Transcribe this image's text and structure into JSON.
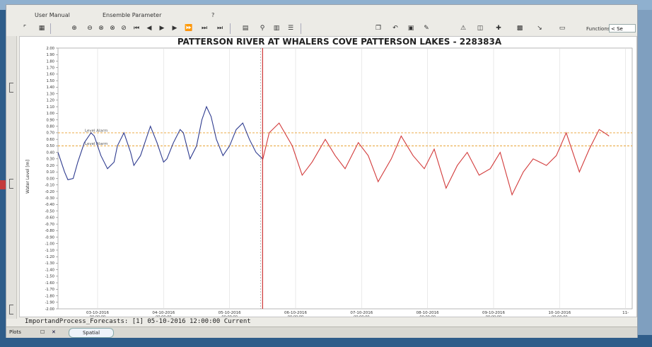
{
  "menu": [
    {
      "label": "User Manual"
    },
    {
      "label": "Ensemble Parameter"
    },
    {
      "label": "?"
    }
  ],
  "toolbar": {
    "functions_label": "Functions",
    "functions_value": "< Se"
  },
  "status_text": "ImportandProcess_Forecasts: [1] 05-10-2016 12:00:00 Current",
  "tabs": [
    {
      "label": "Plots"
    },
    {
      "label": "Spatial"
    }
  ],
  "colors": {
    "observed": "#2e3b8f",
    "forecast": "#d23a3a",
    "alarm": "#e8a030",
    "forecast_time": "#cc3333"
  },
  "chart_data": {
    "type": "line",
    "title": "PATTERSON RIVER AT WHALERS COVE PATTERSON LAKES - 228383A",
    "ylabel": "Water Level [m]",
    "ylim": [
      -2.0,
      2.0
    ],
    "ytick_step": 0.1,
    "xlim": [
      2.4,
      11.1
    ],
    "xticks": [
      {
        "day": 3,
        "label": "03-10-2016",
        "sub": "00:00:00"
      },
      {
        "day": 4,
        "label": "04-10-2016",
        "sub": "00:00:00"
      },
      {
        "day": 5,
        "label": "05-10-2016",
        "sub": "00:00:00"
      },
      {
        "day": 6,
        "label": "06-10-2016",
        "sub": "00:00:00"
      },
      {
        "day": 7,
        "label": "07-10-2016",
        "sub": "00:00:00"
      },
      {
        "day": 8,
        "label": "08-10-2016",
        "sub": "00:00:00"
      },
      {
        "day": 9,
        "label": "09-10-2016",
        "sub": "00:00:00"
      },
      {
        "day": 10,
        "label": "10-10-2016",
        "sub": "00:00:00"
      },
      {
        "day": 11,
        "label": "11-",
        "sub": ""
      }
    ],
    "alarms": [
      {
        "label": "Level Alarm",
        "value": 0.7
      },
      {
        "label": "Level Alarm",
        "value": 0.5
      }
    ],
    "forecast_time_day": 5.5,
    "series": [
      {
        "x": [
          2.4,
          2.5,
          2.55,
          2.63,
          2.7,
          2.8,
          2.9,
          2.95,
          3.05,
          3.15,
          3.25,
          3.3,
          3.4,
          3.5,
          3.55,
          3.65,
          3.75,
          3.8,
          3.9,
          4.0,
          4.05,
          4.15,
          4.25,
          4.3,
          4.4,
          4.5,
          4.58,
          4.65,
          4.72,
          4.8,
          4.9,
          5.0,
          5.1,
          5.2,
          5.3,
          5.4,
          5.5
        ],
        "y": [
          0.4,
          0.1,
          -0.02,
          0.0,
          0.25,
          0.55,
          0.7,
          0.65,
          0.35,
          0.15,
          0.25,
          0.5,
          0.7,
          0.4,
          0.2,
          0.35,
          0.65,
          0.8,
          0.55,
          0.25,
          0.3,
          0.55,
          0.75,
          0.7,
          0.3,
          0.5,
          0.9,
          1.1,
          0.95,
          0.6,
          0.35,
          0.5,
          0.75,
          0.85,
          0.6,
          0.4,
          0.3
        ]
      },
      {
        "x": [
          5.5,
          5.6,
          5.75,
          5.95,
          6.1,
          6.25,
          6.45,
          6.6,
          6.75,
          6.95,
          7.1,
          7.25,
          7.45,
          7.6,
          7.78,
          7.95,
          8.1,
          8.28,
          8.45,
          8.6,
          8.78,
          8.95,
          9.1,
          9.28,
          9.45,
          9.6,
          9.8,
          9.95,
          10.1,
          10.3,
          10.45,
          10.6,
          10.68,
          10.75
        ],
        "y": [
          0.28,
          0.7,
          0.85,
          0.5,
          0.05,
          0.25,
          0.6,
          0.35,
          0.15,
          0.55,
          0.35,
          -0.05,
          0.3,
          0.65,
          0.35,
          0.15,
          0.45,
          -0.15,
          0.2,
          0.4,
          0.05,
          0.15,
          0.4,
          -0.25,
          0.1,
          0.3,
          0.2,
          0.35,
          0.7,
          0.1,
          0.45,
          0.75,
          0.7,
          0.65
        ]
      }
    ]
  }
}
